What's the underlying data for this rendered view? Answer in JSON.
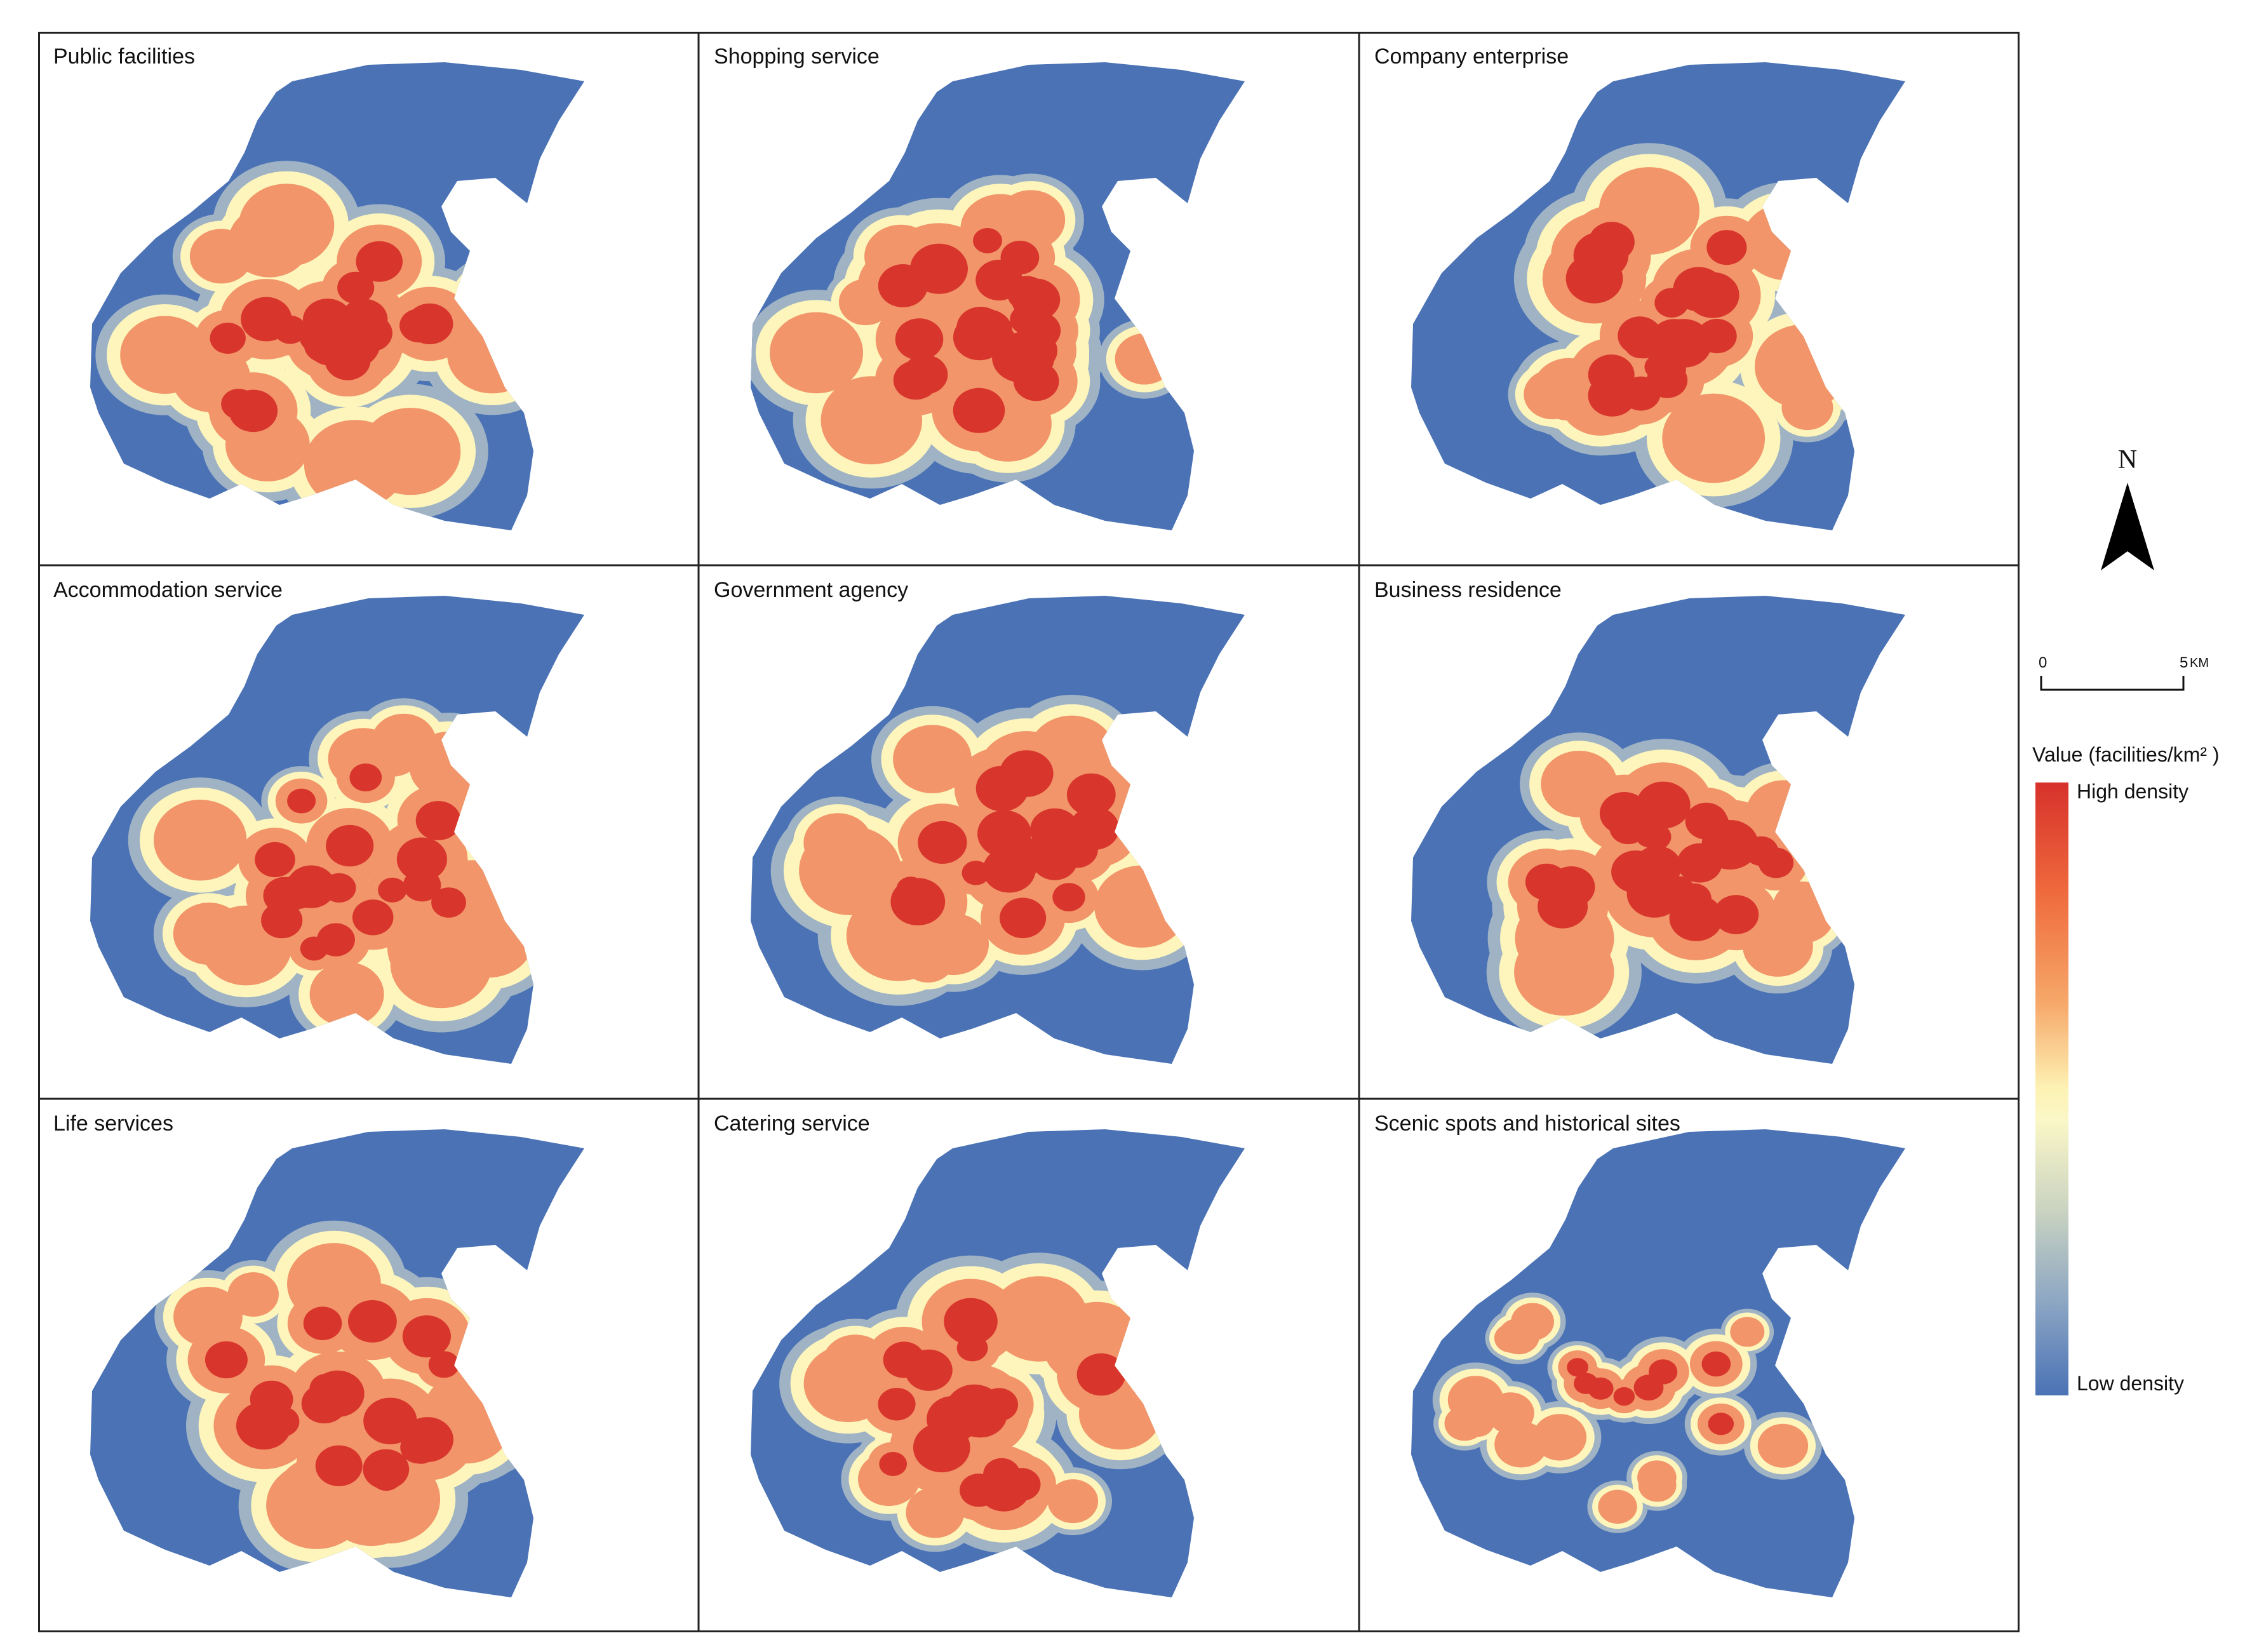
{
  "panels": [
    {
      "title": "Public facilities",
      "variant": 0
    },
    {
      "title": "Shopping service",
      "variant": 1
    },
    {
      "title": "Company enterprise",
      "variant": 2
    },
    {
      "title": "Accommodation service",
      "variant": 3
    },
    {
      "title": "Government agency",
      "variant": 4
    },
    {
      "title": "Business residence",
      "variant": 5
    },
    {
      "title": "Life services",
      "variant": 6
    },
    {
      "title": "Catering service",
      "variant": 7
    },
    {
      "title": "Scenic spots and historical sites",
      "variant": 8
    }
  ],
  "north_arrow": {
    "label": "N"
  },
  "scale_bar": {
    "start_label": "0",
    "end_label": "5",
    "unit": "KM"
  },
  "legend": {
    "title": "Value (facilities/km² )",
    "high_label": "High density",
    "low_label": "Low density"
  },
  "colors": {
    "base": "#4a72b5",
    "ring_grey": "#9fb3c4",
    "yellow": "#fdf5bb",
    "orange": "#f2956a",
    "red": "#d8362c"
  }
}
